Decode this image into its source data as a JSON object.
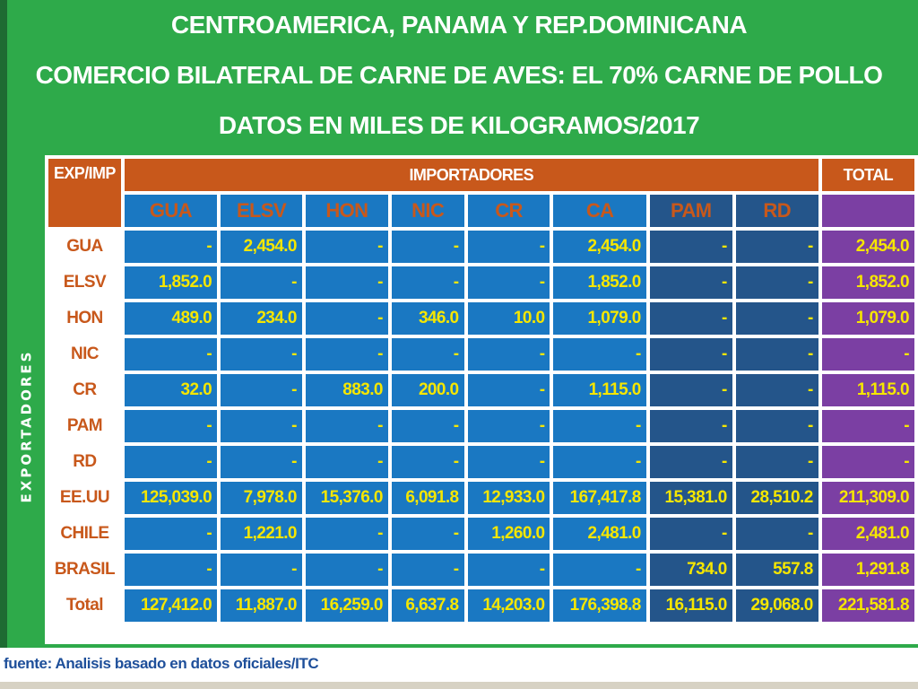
{
  "chart_data": {
    "type": "table",
    "title": [
      "CENTROAMERICA, PANAMA Y REP.DOMINICANA",
      "COMERCIO BILATERAL DE CARNE DE AVES: EL 70% CARNE DE POLLO",
      "DATOS EN MILES DE KILOGRAMOS/2017"
    ],
    "row_axis_label": "EXPORTADORES",
    "corner_label": "EXP/IMP",
    "group_header": "IMPORTADORES",
    "total_header": "TOTAL",
    "columns": [
      "GUA",
      "ELSV",
      "HON",
      "NIC",
      "CR",
      "CA",
      "PAM",
      "RD"
    ],
    "rows": [
      {
        "label": "GUA",
        "values": [
          "-",
          "2,454.0",
          "-",
          "-",
          "-",
          "2,454.0",
          "-",
          "-"
        ],
        "total": "2,454.0"
      },
      {
        "label": "ELSV",
        "values": [
          "1,852.0",
          "-",
          "-",
          "-",
          "-",
          "1,852.0",
          "-",
          "-"
        ],
        "total": "1,852.0"
      },
      {
        "label": "HON",
        "values": [
          "489.0",
          "234.0",
          "-",
          "346.0",
          "10.0",
          "1,079.0",
          "-",
          "-"
        ],
        "total": "1,079.0"
      },
      {
        "label": "NIC",
        "values": [
          "-",
          "-",
          "-",
          "-",
          "-",
          "-",
          "-",
          "-"
        ],
        "total": "-"
      },
      {
        "label": "CR",
        "values": [
          "32.0",
          "-",
          "883.0",
          "200.0",
          "-",
          "1,115.0",
          "-",
          "-"
        ],
        "total": "1,115.0"
      },
      {
        "label": "PAM",
        "values": [
          "-",
          "-",
          "-",
          "-",
          "-",
          "-",
          "-",
          "-"
        ],
        "total": "-"
      },
      {
        "label": "RD",
        "values": [
          "-",
          "-",
          "-",
          "-",
          "-",
          "-",
          "-",
          "-"
        ],
        "total": "-"
      },
      {
        "label": "EE.UU",
        "values": [
          "125,039.0",
          "7,978.0",
          "15,376.0",
          "6,091.8",
          "12,933.0",
          "167,417.8",
          "15,381.0",
          "28,510.2"
        ],
        "total": "211,309.0"
      },
      {
        "label": "CHILE",
        "values": [
          "-",
          "1,221.0",
          "-",
          "-",
          "1,260.0",
          "2,481.0",
          "-",
          "-"
        ],
        "total": "2,481.0"
      },
      {
        "label": "BRASIL",
        "values": [
          "-",
          "-",
          "-",
          "-",
          "-",
          "-",
          "734.0",
          "557.8"
        ],
        "total": "1,291.8"
      },
      {
        "label": "Total",
        "values": [
          "127,412.0",
          "11,887.0",
          "16,259.0",
          "6,637.8",
          "14,203.0",
          "176,398.8",
          "16,115.0",
          "29,068.0"
        ],
        "total": "221,581.8"
      }
    ],
    "source": "fuente: Analisis basado en datos oficiales/ITC"
  },
  "colors": {
    "background": "#2eaa4a",
    "header_orange": "#c8581b",
    "cell_blue": "#1a78c2",
    "cell_dark_blue": "#24558a",
    "total_purple": "#7b3fa3",
    "value_yellow": "#f5e600"
  }
}
